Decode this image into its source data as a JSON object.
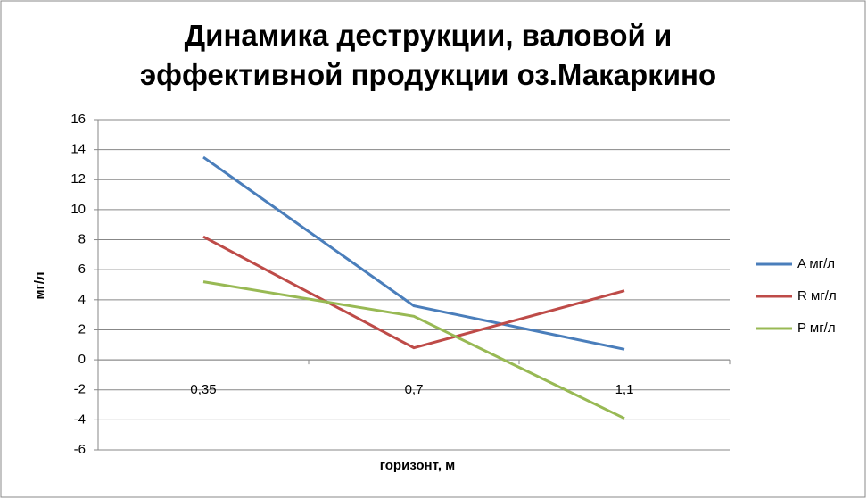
{
  "chart_data": {
    "type": "line",
    "title": "Динамика деструкции, валовой и эффективной продукции оз.Макаркино",
    "x_label": "горизонт, м",
    "y_label": "мг/л",
    "categories": [
      "0,35",
      "0,7",
      "1,1"
    ],
    "series": [
      {
        "name": "A мг/л",
        "color": "#4a7ebb",
        "values": [
          13.5,
          3.6,
          0.7
        ]
      },
      {
        "name": "R мг/л",
        "color": "#be4b48",
        "values": [
          8.2,
          0.8,
          4.6
        ]
      },
      {
        "name": "P мг/л",
        "color": "#98b954",
        "values": [
          5.2,
          2.9,
          -3.9
        ]
      }
    ],
    "ylim": [
      -6,
      16
    ],
    "yticks": [
      -6,
      -4,
      -2,
      0,
      2,
      4,
      6,
      8,
      10,
      12,
      14,
      16
    ],
    "grid": true,
    "legend": "right"
  }
}
